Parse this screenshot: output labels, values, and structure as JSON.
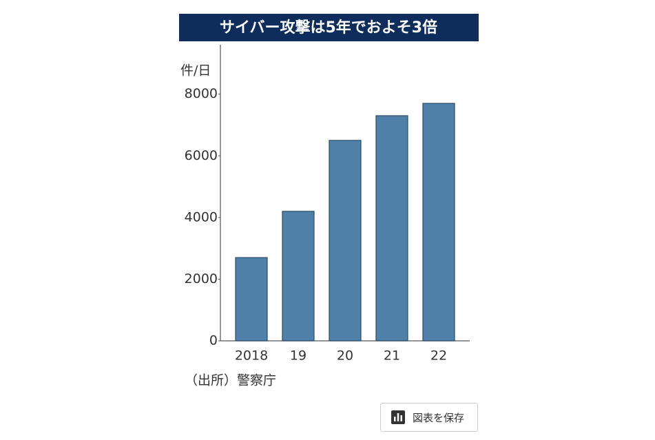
{
  "chart_data": {
    "type": "bar",
    "title": "サイバー攻撃は5年でおよそ3倍",
    "y_unit": "件/日",
    "categories": [
      "2018",
      "19",
      "20",
      "21",
      "22"
    ],
    "values": [
      2700,
      4200,
      6500,
      7300,
      7700
    ],
    "color": "#4f81a8",
    "edge_color": "#2b4c69",
    "ylim": [
      0,
      9600
    ],
    "yticks": [
      0,
      2000,
      4000,
      6000,
      8000
    ],
    "grid": false,
    "source": "（出所）警察庁"
  },
  "ui": {
    "save_button": "図表を保存"
  }
}
